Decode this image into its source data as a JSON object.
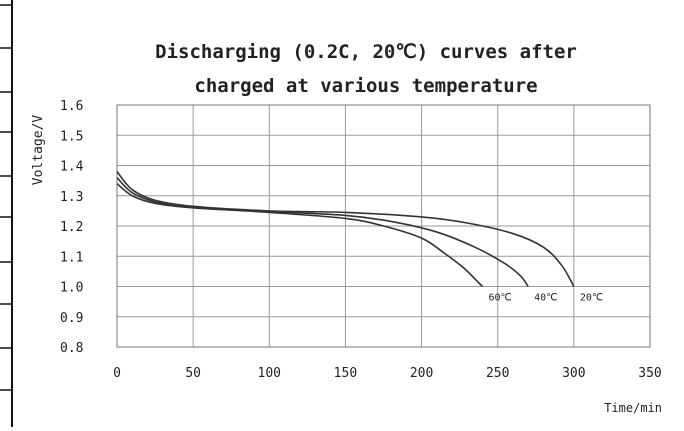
{
  "colors": {
    "curve": "#333333",
    "grid": "#9a9a9a",
    "text": "#222222",
    "background": "#ffffff"
  },
  "chart_data": {
    "type": "line",
    "title_line1": "Discharging (0.2C, 20℃) curves after",
    "title_line2": "charged at various temperature",
    "xlabel": "Time/min",
    "ylabel": "Voltage/V",
    "xlim": [
      0,
      350
    ],
    "ylim": [
      0.8,
      1.6
    ],
    "xticks": [
      0,
      50,
      100,
      150,
      200,
      250,
      300,
      350
    ],
    "yticks": [
      "1.6",
      "1.5",
      "1.4",
      "1.3",
      "1.2",
      "1.1",
      "1.0",
      "0.9",
      "0.8"
    ],
    "grid": true,
    "series": [
      {
        "name": "20℃",
        "x": [
          0,
          10,
          25,
          50,
          100,
          150,
          200,
          230,
          260,
          280,
          292,
          300
        ],
        "y": [
          1.38,
          1.32,
          1.285,
          1.265,
          1.25,
          1.245,
          1.23,
          1.21,
          1.175,
          1.13,
          1.07,
          1.0
        ]
      },
      {
        "name": "40℃",
        "x": [
          0,
          10,
          25,
          50,
          100,
          150,
          180,
          210,
          235,
          255,
          265,
          270
        ],
        "y": [
          1.36,
          1.31,
          1.28,
          1.262,
          1.248,
          1.235,
          1.215,
          1.18,
          1.13,
          1.075,
          1.035,
          1.0
        ]
      },
      {
        "name": "60℃",
        "x": [
          0,
          10,
          25,
          50,
          100,
          150,
          175,
          200,
          215,
          228,
          236,
          240
        ],
        "y": [
          1.34,
          1.3,
          1.275,
          1.26,
          1.245,
          1.225,
          1.2,
          1.16,
          1.11,
          1.06,
          1.02,
          1.0
        ]
      }
    ]
  }
}
